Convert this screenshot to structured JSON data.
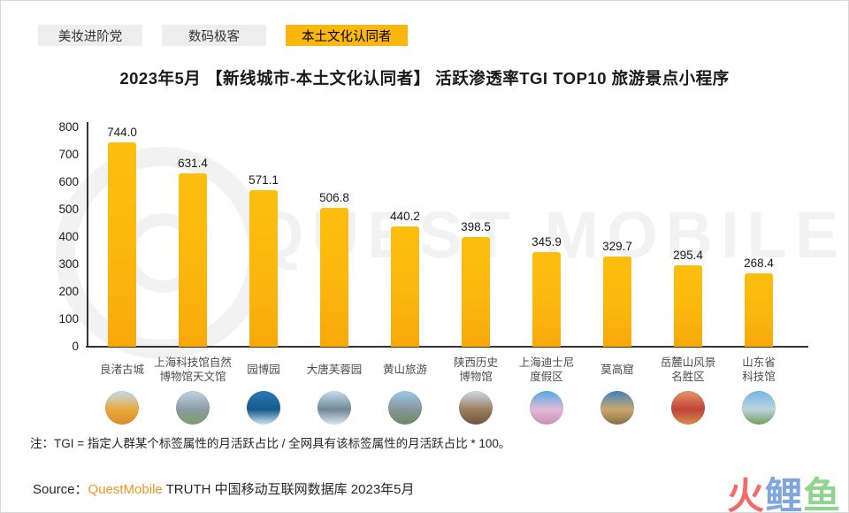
{
  "tabs": [
    {
      "label": "美妆进阶党",
      "active": false
    },
    {
      "label": "数码极客",
      "active": false
    },
    {
      "label": "本土文化认同者",
      "active": true
    }
  ],
  "title": "2023年5月 【新线城市-本土文化认同者】 活跃渗透率TGI TOP10 旅游景点小程序",
  "watermark_text": "QUEST MOBILE",
  "chart_data": {
    "type": "bar",
    "title": "2023年5月 【新线城市-本土文化认同者】 活跃渗透率TGI TOP10 旅游景点小程序",
    "categories": [
      "良渚古城",
      "上海科技馆自然博物馆天文馆",
      "园博园",
      "大唐芙蓉园",
      "黄山旅游",
      "陕西历史博物馆",
      "上海迪士尼度假区",
      "莫高窟",
      "岳麓山风景名胜区",
      "山东省科技馆"
    ],
    "category_lines": [
      [
        "良渚古城"
      ],
      [
        "上海科技馆自然",
        "博物馆天文馆"
      ],
      [
        "园博园"
      ],
      [
        "大唐芙蓉园"
      ],
      [
        "黄山旅游"
      ],
      [
        "陕西历史",
        "博物馆"
      ],
      [
        "上海迪士尼",
        "度假区"
      ],
      [
        "莫高窟"
      ],
      [
        "岳麓山风景",
        "名胜区"
      ],
      [
        "山东省",
        "科技馆"
      ]
    ],
    "values": [
      744.0,
      631.4,
      571.1,
      506.8,
      440.2,
      398.5,
      345.9,
      329.7,
      295.4,
      268.4
    ],
    "value_format_decimals": 1,
    "xlabel": "",
    "ylabel": "",
    "ylim": [
      0,
      800
    ],
    "ytick_step": 100,
    "grid": false,
    "legend": false,
    "bar_color": "#fbb70d",
    "icons": [
      {
        "name": "liangzhu-ancient-city-photo-icon",
        "gradient": [
          "#bfddf0",
          "#e9a93d",
          "#d98e2b"
        ]
      },
      {
        "name": "shanghai-science-museum-photo-icon",
        "gradient": [
          "#c2d4e0",
          "#8a9ba6",
          "#7e9e6a"
        ]
      },
      {
        "name": "garden-expo-park-photo-icon",
        "gradient": [
          "#2d7ab8",
          "#145a8c",
          "#cfe6f2"
        ]
      },
      {
        "name": "datang-furong-garden-photo-icon",
        "gradient": [
          "#c5dff0",
          "#6e8696",
          "#dce9f0"
        ]
      },
      {
        "name": "huangshan-tourism-photo-icon",
        "gradient": [
          "#9ccbea",
          "#87959c",
          "#6b8a60"
        ]
      },
      {
        "name": "shaanxi-history-museum-photo-icon",
        "gradient": [
          "#cbddea",
          "#9c7e5f",
          "#6e5540"
        ]
      },
      {
        "name": "shanghai-disney-resort-photo-icon",
        "gradient": [
          "#53aae8",
          "#e3b9d6",
          "#c891b8"
        ]
      },
      {
        "name": "mogao-grottoes-photo-icon",
        "gradient": [
          "#3f80c2",
          "#c9a96e",
          "#8a6f47"
        ]
      },
      {
        "name": "yuelu-mountain-photo-icon",
        "gradient": [
          "#e8956b",
          "#c04438",
          "#d98c4a"
        ]
      },
      {
        "name": "shandong-science-museum-photo-icon",
        "gradient": [
          "#74b8e2",
          "#bcd3de",
          "#6fa05d"
        ]
      }
    ]
  },
  "note": "注：TGI = 指定人群某个标签属性的月活跃占比 / 全网具有该标签属性的月活跃占比 * 100。",
  "source": {
    "prefix": "Source：",
    "brand": "QuestMobile",
    "suffix": " TRUTH 中国移动互联网数据库 2023年5月"
  },
  "site_logo": {
    "chars": [
      {
        "char": "火",
        "color": "#f26a6a"
      },
      {
        "char": "鲤",
        "color": "#7fa6de"
      },
      {
        "char": "鱼",
        "color": "#90d490"
      }
    ]
  },
  "colors": {
    "accent_yellow": "#fbb70d",
    "tab_inactive_bg": "#eeeeee",
    "brand_orange": "#f7941e",
    "watermark_gray": "#f2f2f2"
  }
}
